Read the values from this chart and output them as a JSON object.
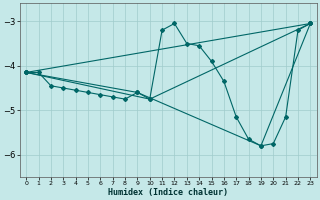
{
  "xlabel": "Humidex (Indice chaleur)",
  "background_color": "#c5e8e8",
  "grid_color": "#a0cccc",
  "line_color": "#006666",
  "xlim": [
    -0.5,
    23.5
  ],
  "ylim": [
    -6.5,
    -2.6
  ],
  "yticks": [
    -6,
    -5,
    -4,
    -3
  ],
  "xticks": [
    0,
    1,
    2,
    3,
    4,
    5,
    6,
    7,
    8,
    9,
    10,
    11,
    12,
    13,
    14,
    15,
    16,
    17,
    18,
    19,
    20,
    21,
    22,
    23
  ],
  "main_series": [
    [
      0,
      -4.15
    ],
    [
      1,
      -4.15
    ],
    [
      2,
      -4.45
    ],
    [
      3,
      -4.5
    ],
    [
      4,
      -4.55
    ],
    [
      5,
      -4.6
    ],
    [
      6,
      -4.65
    ],
    [
      7,
      -4.7
    ],
    [
      8,
      -4.75
    ],
    [
      9,
      -4.6
    ],
    [
      10,
      -4.75
    ],
    [
      11,
      -3.2
    ],
    [
      12,
      -3.05
    ],
    [
      13,
      -3.5
    ],
    [
      14,
      -3.55
    ],
    [
      15,
      -3.9
    ],
    [
      16,
      -4.35
    ],
    [
      17,
      -5.15
    ],
    [
      18,
      -5.65
    ],
    [
      19,
      -5.8
    ],
    [
      20,
      -5.75
    ],
    [
      21,
      -5.15
    ],
    [
      22,
      -3.2
    ],
    [
      23,
      -3.05
    ]
  ],
  "straight_lines": [
    [
      [
        0,
        -4.15
      ],
      [
        23,
        -3.05
      ]
    ],
    [
      [
        0,
        -4.15
      ],
      [
        10,
        -4.75
      ],
      [
        23,
        -3.05
      ]
    ],
    [
      [
        0,
        -4.15
      ],
      [
        9,
        -4.6
      ],
      [
        19,
        -5.8
      ],
      [
        23,
        -3.05
      ]
    ]
  ]
}
